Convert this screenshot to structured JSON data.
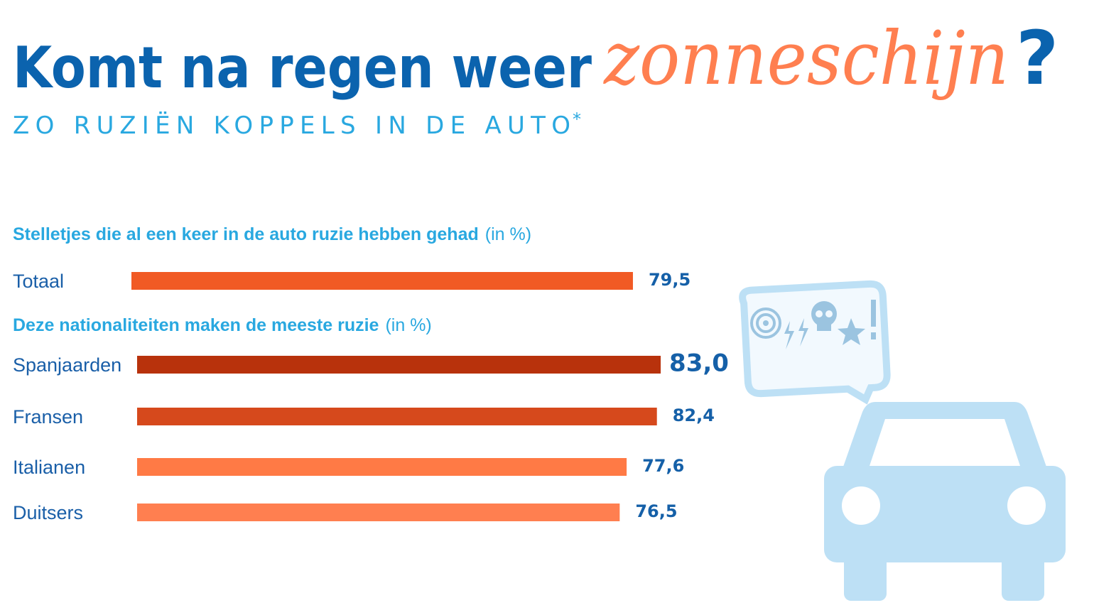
{
  "header": {
    "title_parts": [
      "Komt na regen weer",
      "zonneschijn",
      "?"
    ],
    "subtitle": "ZO RUZIËN KOPPELS IN DE AUTO",
    "subtitle_mark": "*"
  },
  "chart_data": [
    {
      "type": "hbar",
      "title": "Stelletjes die al een keer in de auto ruzie hebben gehad",
      "unit": "(in %)",
      "categories": [
        "Totaal"
      ],
      "values": [
        79.5
      ],
      "value_labels": [
        "79,5"
      ],
      "colors": [
        "#f15a24"
      ]
    },
    {
      "type": "hbar",
      "title": "Deze nationaliteiten maken de meeste ruzie",
      "unit": "(in %)",
      "categories": [
        "Spanjaarden",
        "Fransen",
        "Italianen",
        "Duitsers"
      ],
      "values": [
        83.0,
        82.4,
        77.6,
        76.5
      ],
      "value_labels": [
        "83,0",
        "82,4",
        "77,6",
        "76,5"
      ],
      "colors": [
        "#b8320c",
        "#d6491c",
        "#ff7a45",
        "#ff7f50"
      ]
    }
  ]
}
